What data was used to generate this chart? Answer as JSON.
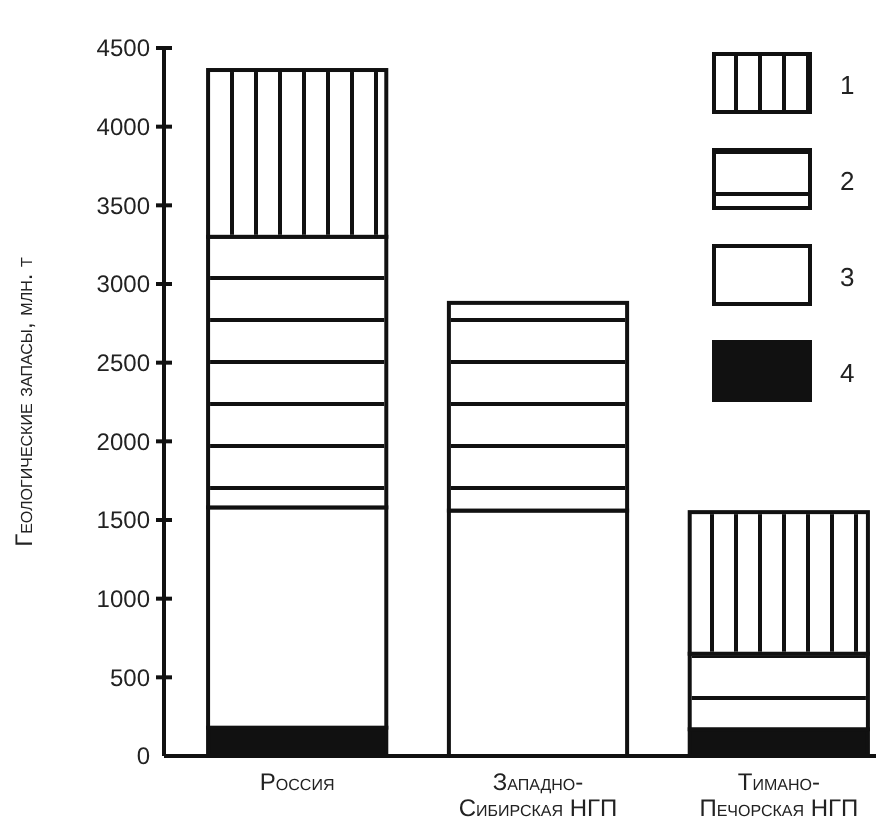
{
  "chart_data": {
    "type": "bar",
    "stacked": true,
    "ylabel": "Геологические запасы, млн. т",
    "categories": [
      "Россия",
      "Западно-Сибирская НГП",
      "Тимано-Печорская НГП"
    ],
    "ylim": [
      0,
      4500
    ],
    "yticks": [
      0,
      500,
      1000,
      1500,
      2000,
      2500,
      3000,
      3500,
      4000,
      4500
    ],
    "grid": false,
    "legend": "top right",
    "series": [
      {
        "name": "4",
        "color": "#111111",
        "values": [
          180,
          0,
          170
        ]
      },
      {
        "name": "3",
        "color": "#ffffff",
        "values": [
          1400,
          1560,
          0
        ]
      },
      {
        "name": "2",
        "color": "#ffffff",
        "values": [
          1720,
          1320,
          480
        ]
      },
      {
        "name": "1",
        "color": "#ffffff",
        "values": [
          1060,
          0,
          900
        ]
      }
    ]
  }
}
